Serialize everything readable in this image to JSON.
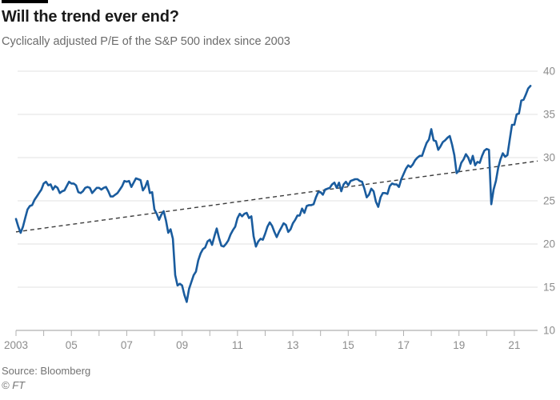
{
  "header": {
    "title": "Will the trend ever end?",
    "subtitle": "Cyclically adjusted P/E of the S&P 500 index since 2003"
  },
  "footer": {
    "source": "Source: Bloomberg",
    "credit": "© FT"
  },
  "chart_data": {
    "type": "line",
    "title": "Will the trend ever end?",
    "subtitle": "Cyclically adjusted P/E of the S&P 500 index since 2003",
    "xlabel": "",
    "ylabel": "",
    "ylim": [
      10,
      40
    ],
    "xlim": [
      2003.0,
      2021.84
    ],
    "grid": "horizontal",
    "legend": "none",
    "y_ticks": [
      10,
      15,
      20,
      25,
      30,
      35,
      40
    ],
    "x_tick_years_start": 2003,
    "x_tick_years_end": 2021,
    "x_tick_labels": [
      "2003",
      "05",
      "07",
      "09",
      "11",
      "13",
      "15",
      "17",
      "19",
      "21"
    ],
    "series": [
      {
        "name": "Cyclically adjusted P/E (CAPE) of S&P 500",
        "frequency": "monthly",
        "start": "2003-01",
        "end": "2021-08",
        "values": [
          22.9,
          22.0,
          21.3,
          22.0,
          23.0,
          24.0,
          24.4,
          24.5,
          25.1,
          25.5,
          25.9,
          26.3,
          27.0,
          27.2,
          26.8,
          26.9,
          26.3,
          26.7,
          26.5,
          25.9,
          26.1,
          26.2,
          26.7,
          27.2,
          27.0,
          27.0,
          26.8,
          26.0,
          25.9,
          26.1,
          26.5,
          26.6,
          26.5,
          25.9,
          26.2,
          26.5,
          26.5,
          26.3,
          26.5,
          26.6,
          26.1,
          25.5,
          25.5,
          25.7,
          25.9,
          26.3,
          26.7,
          27.3,
          27.2,
          27.3,
          26.6,
          27.1,
          27.6,
          27.5,
          27.4,
          26.2,
          26.6,
          27.3,
          25.9,
          26.0,
          24.0,
          23.5,
          22.8,
          23.4,
          23.8,
          22.7,
          21.3,
          21.7,
          20.6,
          16.4,
          15.2,
          15.4,
          15.2,
          14.1,
          13.3,
          14.8,
          15.6,
          16.4,
          16.8,
          18.1,
          18.9,
          19.4,
          19.6,
          20.3,
          20.5,
          19.9,
          20.9,
          21.8,
          20.7,
          19.8,
          19.7,
          20.0,
          20.4,
          21.1,
          21.6,
          22.0,
          23.0,
          23.5,
          23.2,
          23.5,
          23.6,
          23.0,
          23.2,
          20.9,
          19.7,
          20.3,
          20.6,
          20.5,
          21.2,
          22.0,
          22.5,
          22.1,
          21.4,
          20.8,
          21.4,
          21.9,
          22.4,
          22.2,
          21.4,
          21.7,
          22.4,
          22.8,
          23.3,
          23.3,
          24.1,
          23.6,
          24.4,
          24.5,
          24.5,
          24.6,
          25.4,
          26.0,
          26.0,
          25.7,
          26.3,
          26.4,
          26.5,
          26.9,
          27.1,
          26.5,
          27.1,
          26.1,
          26.9,
          27.2,
          26.8,
          27.3,
          27.4,
          27.5,
          27.5,
          27.3,
          27.2,
          26.4,
          25.4,
          25.7,
          26.4,
          26.1,
          24.9,
          24.3,
          25.4,
          25.9,
          25.9,
          25.8,
          26.7,
          27.0,
          26.9,
          26.9,
          26.6,
          27.5,
          28.1,
          28.7,
          29.1,
          28.9,
          29.2,
          29.7,
          30.0,
          30.2,
          30.2,
          31.0,
          31.7,
          32.1,
          33.3,
          32.0,
          31.9,
          30.9,
          31.3,
          31.8,
          32.0,
          32.3,
          32.5,
          31.5,
          30.3,
          28.2,
          28.5,
          29.4,
          29.8,
          30.4,
          30.0,
          29.3,
          30.2,
          29.1,
          29.5,
          29.4,
          30.2,
          30.8,
          31.0,
          30.9,
          24.6,
          26.3,
          27.3,
          28.8,
          29.8,
          30.5,
          30.1,
          30.3,
          32.1,
          33.8,
          33.8,
          35.0,
          35.1,
          36.6,
          36.7,
          37.3,
          38.0,
          38.3
        ]
      }
    ],
    "trendline": {
      "name": "Linear trend",
      "style": "dashed",
      "x": [
        2003.0,
        2021.84
      ],
      "values": [
        21.4,
        29.6
      ]
    },
    "colors": {
      "line": "#1a5c9e",
      "trend": "#3c3c3c",
      "grid": "#e7e7e7",
      "axis": "#b0b0b0",
      "tick_label": "#8c8c8c"
    }
  }
}
